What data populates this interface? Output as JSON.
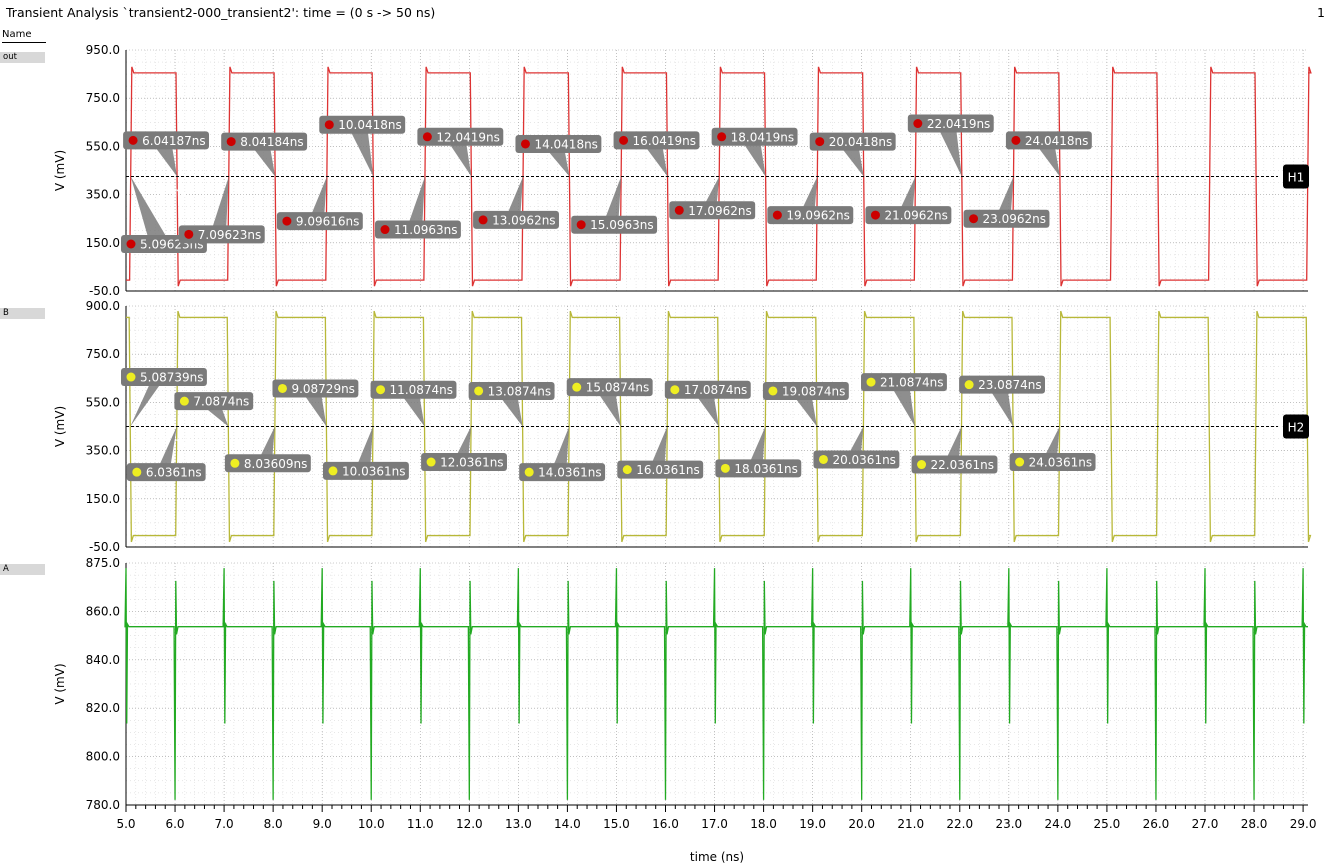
{
  "window": {
    "title": "Transient Analysis `transient2-000_transient2': time = (0 s -> 50 ns)",
    "page_number": "1",
    "name_header": "Name"
  },
  "colors": {
    "out": "#dd3333",
    "B": "#b8b838",
    "A": "#22aa22",
    "marker_out": "#cc0000",
    "marker_B": "#eeee22",
    "label_bg": "#7a7a7a",
    "grid": "#9a9a9a"
  },
  "chart_data": {
    "type": "line",
    "xlabel": "time (ns)",
    "xlim": [
      5.0,
      29.1
    ],
    "x_ticks": [
      "5.0",
      "6.0",
      "7.0",
      "8.0",
      "9.0",
      "10.0",
      "11.0",
      "12.0",
      "13.0",
      "14.0",
      "15.0",
      "16.0",
      "17.0",
      "18.0",
      "19.0",
      "20.0",
      "21.0",
      "22.0",
      "23.0",
      "24.0",
      "25.0",
      "26.0",
      "27.0",
      "28.0",
      "29.0"
    ],
    "panels": [
      {
        "signal": "out",
        "ylabel": "V (mV)",
        "ylim": [
          -50,
          950
        ],
        "y_ticks": [
          "950.0",
          "750.0",
          "550.0",
          "350.0",
          "150.0",
          "-50.0"
        ],
        "waveform": {
          "low": -5,
          "high": 855,
          "period": 2,
          "rise_at": 5.096,
          "fall_at": 6.042
        },
        "threshold": {
          "value": 425.0,
          "label": "425.0mV",
          "cursor": "H1"
        },
        "markers": [
          {
            "x": 6.04187,
            "label": "6.04187ns",
            "y": 575
          },
          {
            "x": 8.04184,
            "label": "8.04184ns",
            "y": 570
          },
          {
            "x": 10.0418,
            "label": "10.0418ns",
            "y": 640
          },
          {
            "x": 12.0419,
            "label": "12.0419ns",
            "y": 590
          },
          {
            "x": 14.0418,
            "label": "14.0418ns",
            "y": 560
          },
          {
            "x": 16.0419,
            "label": "16.0419ns",
            "y": 575
          },
          {
            "x": 18.0419,
            "label": "18.0419ns",
            "y": 590
          },
          {
            "x": 20.0418,
            "label": "20.0418ns",
            "y": 570
          },
          {
            "x": 22.0419,
            "label": "22.0419ns",
            "y": 645
          },
          {
            "x": 24.0418,
            "label": "24.0418ns",
            "y": 575
          },
          {
            "x": 5.09623,
            "label": "5.09623ns",
            "y": 145
          },
          {
            "x": 7.09623,
            "label": "7.09623ns",
            "y": 185
          },
          {
            "x": 9.09616,
            "label": "9.09616ns",
            "y": 240
          },
          {
            "x": 11.0963,
            "label": "11.0963ns",
            "y": 205
          },
          {
            "x": 13.0962,
            "label": "13.0962ns",
            "y": 245
          },
          {
            "x": 15.0963,
            "label": "15.0963ns",
            "y": 225
          },
          {
            "x": 17.0962,
            "label": "17.0962ns",
            "y": 285
          },
          {
            "x": 19.0962,
            "label": "19.0962ns",
            "y": 265
          },
          {
            "x": 21.0962,
            "label": "21.0962ns",
            "y": 265
          },
          {
            "x": 23.0962,
            "label": "23.0962ns",
            "y": 250
          }
        ]
      },
      {
        "signal": "B",
        "ylabel": "V (mV)",
        "ylim": [
          -50,
          900
        ],
        "y_ticks": [
          "900.0",
          "750.0",
          "550.0",
          "350.0",
          "150.0",
          "-50.0"
        ],
        "waveform": {
          "low": -5,
          "high": 855,
          "period": 2,
          "rise_at": 6.036,
          "fall_at": 5.087
        },
        "threshold": {
          "value": 425.0,
          "label": "425.0mV",
          "cursor": "H2"
        },
        "markers": [
          {
            "x": 5.08739,
            "label": "5.08739ns",
            "y": 620
          },
          {
            "x": 7.0874,
            "label": "7.0874ns",
            "y": 525
          },
          {
            "x": 9.08729,
            "label": "9.08729ns",
            "y": 575
          },
          {
            "x": 11.0874,
            "label": "11.0874ns",
            "y": 570
          },
          {
            "x": 13.0874,
            "label": "13.0874ns",
            "y": 565
          },
          {
            "x": 15.0874,
            "label": "15.0874ns",
            "y": 580
          },
          {
            "x": 17.0874,
            "label": "17.0874ns",
            "y": 570
          },
          {
            "x": 19.0874,
            "label": "19.0874ns",
            "y": 565
          },
          {
            "x": 21.0874,
            "label": "21.0874ns",
            "y": 600
          },
          {
            "x": 23.0874,
            "label": "23.0874ns",
            "y": 590
          },
          {
            "x": 6.0361,
            "label": "6.0361ns",
            "y": 245
          },
          {
            "x": 8.03609,
            "label": "8.03609ns",
            "y": 280
          },
          {
            "x": 10.0361,
            "label": "10.0361ns",
            "y": 250
          },
          {
            "x": 12.0361,
            "label": "12.0361ns",
            "y": 285
          },
          {
            "x": 14.0361,
            "label": "14.0361ns",
            "y": 245
          },
          {
            "x": 16.0361,
            "label": "16.0361ns",
            "y": 255
          },
          {
            "x": 18.0361,
            "label": "18.0361ns",
            "y": 260
          },
          {
            "x": 20.0361,
            "label": "20.0361ns",
            "y": 295
          },
          {
            "x": 22.0361,
            "label": "22.0361ns",
            "y": 275
          },
          {
            "x": 24.0361,
            "label": "24.0361ns",
            "y": 285
          }
        ]
      },
      {
        "signal": "A",
        "ylabel": "V (mV)",
        "ylim": [
          780,
          875
        ],
        "y_ticks": [
          "875.0",
          "860.0",
          "840.0",
          "820.0",
          "800.0",
          "780.0"
        ],
        "waveform": {
          "baseline": 850,
          "spike_high": 873,
          "spike_low": 782,
          "spike_times_start": 5.0,
          "spike_interval": 1.0
        }
      }
    ]
  }
}
